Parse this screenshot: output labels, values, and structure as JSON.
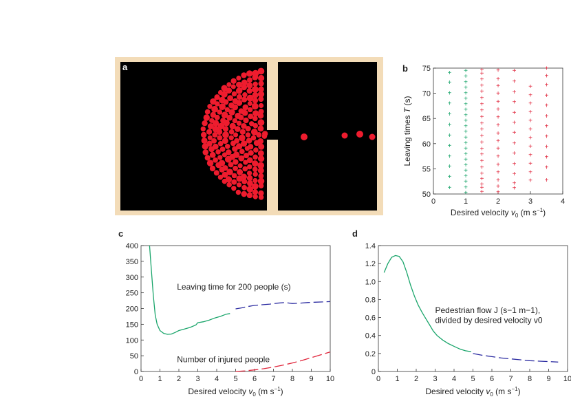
{
  "panel_a": {
    "letter": "a"
  },
  "panel_b": {
    "letter": "b"
  },
  "panel_c": {
    "letter": "c"
  },
  "panel_d": {
    "letter": "d"
  },
  "colors": {
    "frame": "#f3dcb8",
    "particle": "#ee1c2e",
    "green": "#1aa56b",
    "red": "#e0243a",
    "blue": "#2a2aa0",
    "red_dash": "#e0243a"
  },
  "chart_data": [
    {
      "id": "b",
      "type": "scatter",
      "xlabel_main": "Desired velocity ",
      "xlabel_var": "v",
      "xlabel_sub": "0",
      "xlabel_unit": " (m s",
      "xlabel_sup": "−1",
      "xlabel_close": ")",
      "ylabel_main": "Leaving times ",
      "ylabel_var": "T",
      "ylabel_unit": " (s)",
      "xlim": [
        0,
        4
      ],
      "ylim": [
        50,
        75
      ],
      "xticks": [
        "0",
        "1",
        "2",
        "3",
        "4"
      ],
      "yticks": [
        "50",
        "55",
        "60",
        "65",
        "70",
        "75"
      ],
      "series": [
        {
          "color_key": "green",
          "x": 0.5,
          "values": [
            51.3,
            53.5,
            55.5,
            57.5,
            59.6,
            61.7,
            63.8,
            65.9,
            68,
            70.1,
            72.2,
            74.1
          ]
        },
        {
          "color_key": "green",
          "x": 1.0,
          "values": [
            50.3,
            51.4,
            52.5,
            53.6,
            54.7,
            55.8,
            56.9,
            58,
            59.1,
            60.2,
            61.3,
            62.4,
            63.5,
            64.6,
            65.7,
            66.8,
            67.9,
            69,
            70.1,
            71.2,
            72.3,
            73.4,
            74.5
          ]
        },
        {
          "color_key": "red",
          "x": 1.5,
          "values": [
            50.5,
            51.3,
            52,
            53.1,
            54.1,
            55.3,
            56.6,
            57.9,
            59,
            60.3,
            61.6,
            62.9,
            64.1,
            65.4,
            66.7,
            67.9,
            69.1,
            70.4,
            71.6,
            72.8,
            74,
            74.7
          ]
        },
        {
          "color_key": "red",
          "x": 2.0,
          "values": [
            50.4,
            51.6,
            52.8,
            54.4,
            55.9,
            57.5,
            59.1,
            60.6,
            62.1,
            63.7,
            65.3,
            66.9,
            68.4,
            70,
            71.5,
            72.9,
            74.6
          ]
        },
        {
          "color_key": "red",
          "x": 2.5,
          "values": [
            51.2,
            52.2,
            54,
            56,
            58.1,
            60.1,
            62.2,
            64.2,
            66.2,
            68.3,
            70.3,
            72.4,
            74.5
          ]
        },
        {
          "color_key": "red",
          "x": 3.0,
          "values": [
            52.7,
            54.4,
            56.1,
            57.8,
            59.5,
            61.2,
            62.9,
            64.6,
            66.3,
            68,
            69.7,
            71.4
          ]
        },
        {
          "color_key": "red",
          "x": 3.5,
          "values": [
            52.8,
            55.3,
            57.4,
            59.4,
            61.5,
            63.5,
            65.5,
            67.6,
            69.6,
            71.7,
            73.5,
            75
          ]
        }
      ]
    },
    {
      "id": "c",
      "type": "line",
      "xlabel_main": "Desired velocity ",
      "xlabel_var": "v",
      "xlabel_sub": "0",
      "xlabel_unit": " (m s",
      "xlabel_sup": "−1",
      "xlabel_close": ")",
      "xlim": [
        0,
        10
      ],
      "ylim": [
        0,
        400
      ],
      "xticks": [
        "0",
        "1",
        "2",
        "3",
        "4",
        "5",
        "6",
        "7",
        "8",
        "9",
        "10"
      ],
      "yticks": [
        "0",
        "50",
        "100",
        "150",
        "200",
        "250",
        "300",
        "350",
        "400"
      ],
      "annotations": {
        "leaving_time": "Leaving time for 200 people (s)",
        "injured": "Number of injured people"
      },
      "series": [
        {
          "style": "solid",
          "color_key": "green",
          "x": [
            0.45,
            0.55,
            0.65,
            0.75,
            0.85,
            1.0,
            1.2,
            1.4,
            1.6,
            1.8,
            2.0,
            2.3,
            2.6,
            2.9,
            3.0,
            3.3,
            3.6,
            3.9,
            4.2,
            4.5,
            4.7
          ],
          "values": [
            400,
            320,
            240,
            180,
            150,
            130,
            121,
            118,
            119,
            124,
            130,
            135,
            140,
            148,
            155,
            158,
            163,
            170,
            175,
            182,
            184
          ]
        },
        {
          "style": "dashed",
          "color_key": "blue",
          "x": [
            5.0,
            5.3,
            5.6,
            6.0,
            6.4,
            6.8,
            7.2,
            7.6,
            8.0,
            8.4,
            8.8,
            9.2,
            9.6,
            10.0
          ],
          "values": [
            199,
            202,
            206,
            210,
            212,
            214,
            217,
            219,
            216,
            217,
            219,
            220,
            221,
            222
          ]
        },
        {
          "style": "dashed",
          "color_key": "red_dash",
          "x": [
            5.0,
            5.5,
            6.0,
            6.5,
            7.0,
            7.5,
            8.0,
            8.5,
            9.0,
            9.5,
            10.0
          ],
          "values": [
            0,
            2,
            5,
            9,
            14,
            20,
            27,
            35,
            44,
            53,
            62
          ]
        }
      ]
    },
    {
      "id": "d",
      "type": "line",
      "xlabel_main": "Desired velocity ",
      "xlabel_var": "v",
      "xlabel_sub": "0",
      "xlabel_unit": " (m s",
      "xlabel_sup": "−1",
      "xlabel_close": ")",
      "xlim": [
        0,
        10
      ],
      "ylim": [
        0,
        1.4
      ],
      "xticks": [
        "0",
        "1",
        "2",
        "3",
        "4",
        "5",
        "6",
        "7",
        "8",
        "9",
        "10"
      ],
      "yticks": [
        "0",
        "0.2",
        "0.4",
        "0.6",
        "0.8",
        "1.0",
        "1.2",
        "1.4"
      ],
      "annotation_line1": "Pedestrian flow J (s−1 m−1),",
      "annotation_line2": "divided by desired velocity v0",
      "series": [
        {
          "style": "solid",
          "color_key": "green",
          "x": [
            0.3,
            0.5,
            0.7,
            0.9,
            1.1,
            1.3,
            1.5,
            1.7,
            1.9,
            2.1,
            2.3,
            2.5,
            2.7,
            2.9,
            3.1,
            3.4,
            3.7,
            4.0,
            4.3,
            4.6,
            4.9
          ],
          "values": [
            1.1,
            1.2,
            1.27,
            1.29,
            1.28,
            1.22,
            1.1,
            0.96,
            0.84,
            0.74,
            0.66,
            0.59,
            0.52,
            0.45,
            0.4,
            0.35,
            0.31,
            0.28,
            0.25,
            0.23,
            0.22
          ]
        },
        {
          "style": "dashed",
          "color_key": "blue",
          "x": [
            5.0,
            5.5,
            6.0,
            6.5,
            7.0,
            7.5,
            8.0,
            8.5,
            9.0,
            9.5
          ],
          "values": [
            0.2,
            0.18,
            0.165,
            0.15,
            0.14,
            0.13,
            0.12,
            0.115,
            0.11,
            0.105
          ]
        }
      ]
    }
  ]
}
